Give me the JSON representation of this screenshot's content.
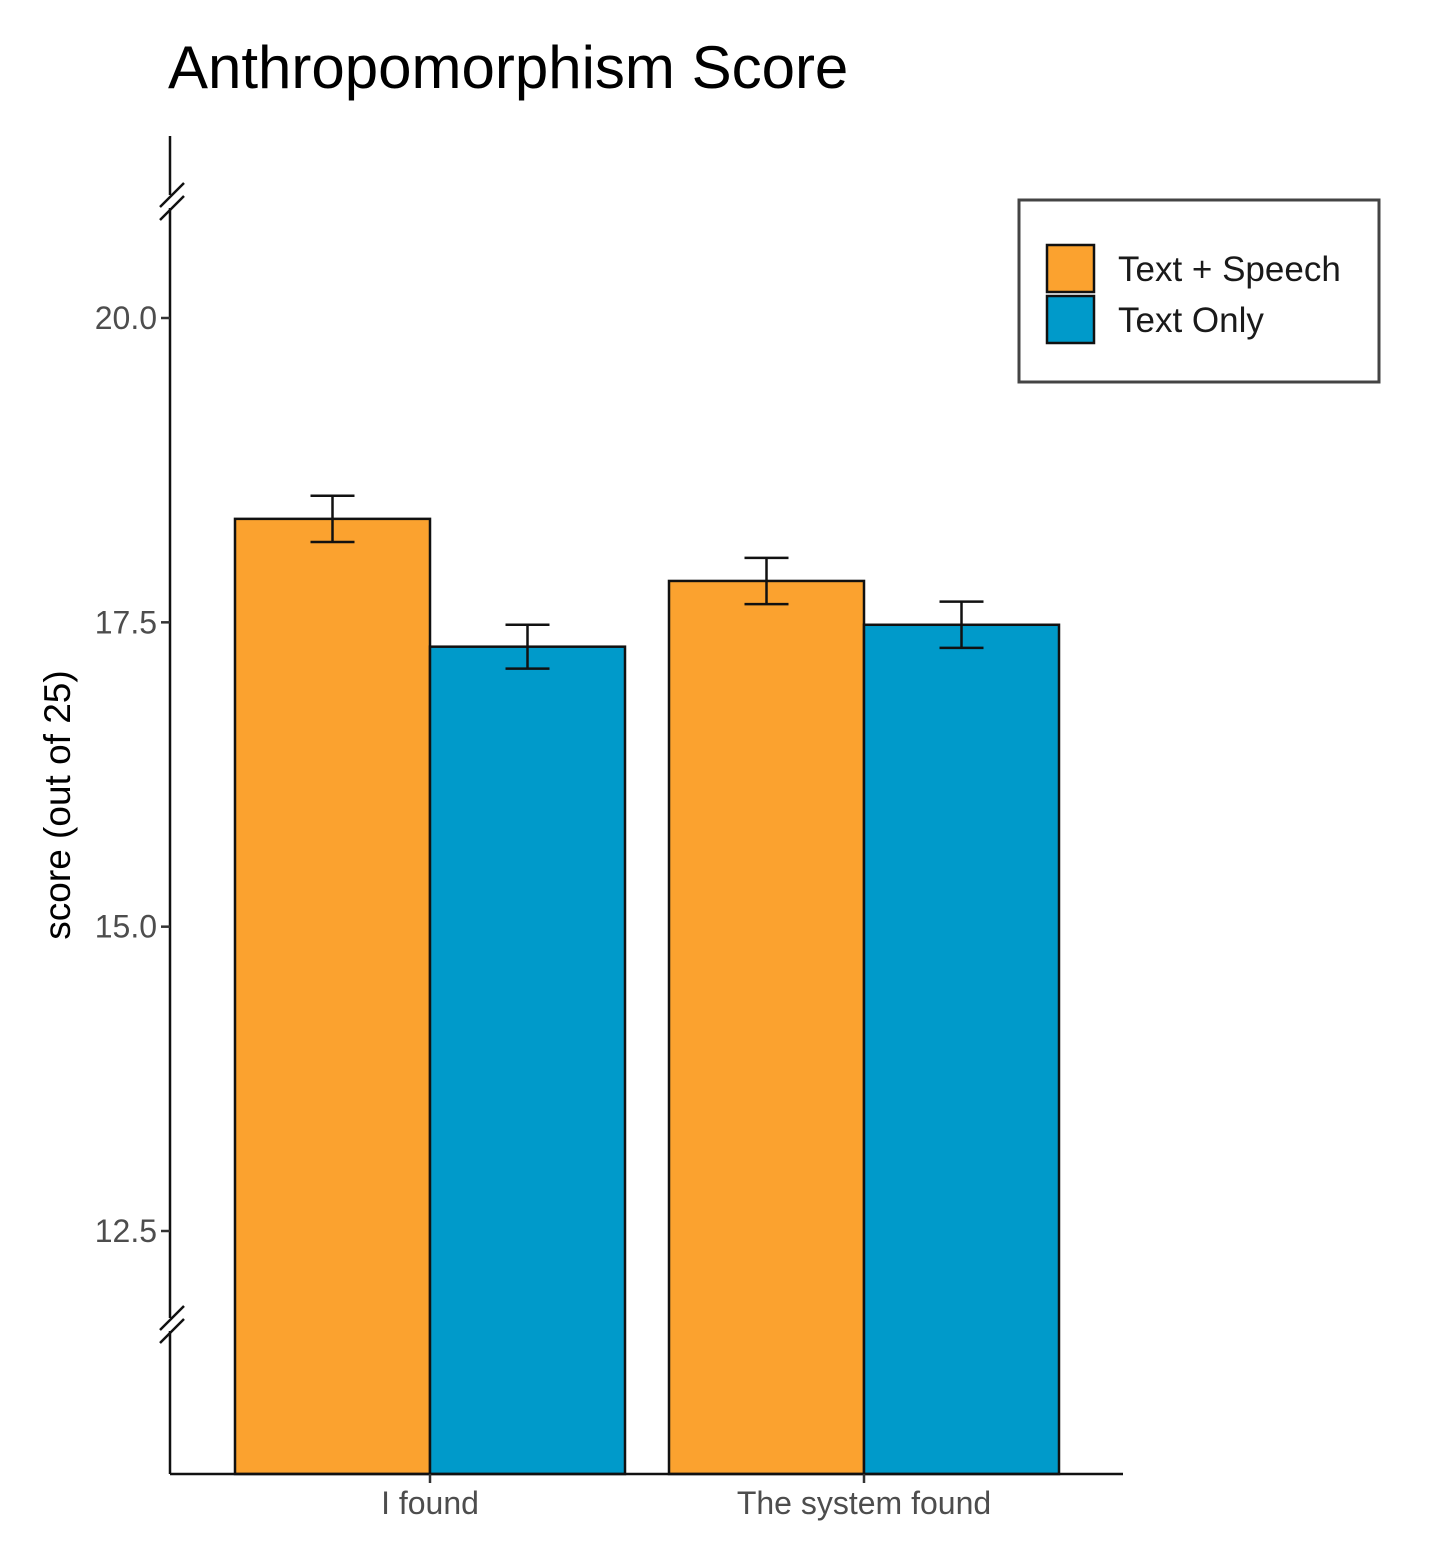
{
  "chart_data": {
    "type": "bar",
    "title": "Anthropomorphism Score",
    "xlabel": "",
    "ylabel": "score (out of 25)",
    "categories": [
      "I found",
      "The system found"
    ],
    "series": [
      {
        "name": "Text + Speech",
        "color": "#FBA22F",
        "values": [
          18.35,
          17.84
        ],
        "error": [
          0.19,
          0.19
        ]
      },
      {
        "name": "Text Only",
        "color": "#009ACA",
        "values": [
          17.3,
          17.48
        ],
        "error": [
          0.18,
          0.19
        ]
      }
    ],
    "ylim": [
      10.5,
      21.0
    ],
    "yticks": [
      12.5,
      15.0,
      17.5,
      20.0
    ],
    "ytick_labels": [
      "12.5",
      "15.0",
      "17.5",
      "20.0"
    ],
    "axis_break": true,
    "grid": false,
    "legend_position": "top-right"
  }
}
